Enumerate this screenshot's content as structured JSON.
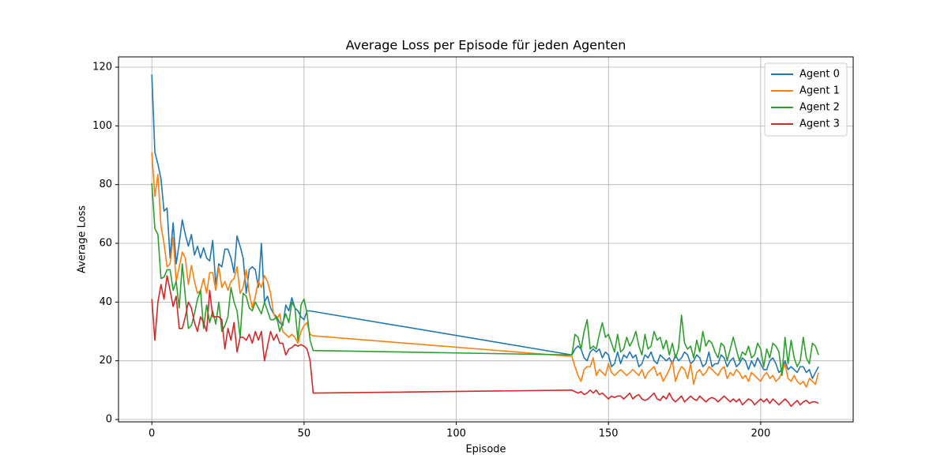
{
  "chart_data": {
    "type": "line",
    "title": "Average Loss per Episode für jeden Agenten",
    "xlabel": "Episode",
    "ylabel": "Average Loss",
    "x": [
      0,
      1,
      2,
      3,
      4,
      5,
      6,
      7,
      8,
      9,
      10,
      11,
      12,
      13,
      14,
      15,
      16,
      17,
      18,
      19,
      20,
      21,
      22,
      23,
      24,
      25,
      26,
      27,
      28,
      29,
      30,
      31,
      32,
      33,
      34,
      35,
      36,
      37,
      38,
      39,
      40,
      41,
      42,
      43,
      44,
      45,
      46,
      47,
      48,
      49,
      50,
      51,
      52,
      53,
      138,
      139,
      140,
      141,
      142,
      143,
      144,
      145,
      146,
      147,
      148,
      149,
      150,
      151,
      152,
      153,
      154,
      155,
      156,
      157,
      158,
      159,
      160,
      161,
      162,
      163,
      164,
      165,
      166,
      167,
      168,
      169,
      170,
      171,
      172,
      173,
      174,
      175,
      176,
      177,
      178,
      179,
      180,
      181,
      182,
      183,
      184,
      185,
      186,
      187,
      188,
      189,
      190,
      191,
      192,
      193,
      194,
      195,
      196,
      197,
      198,
      199,
      200,
      201,
      202,
      203,
      204,
      205,
      206,
      207,
      208,
      209,
      210,
      211,
      212,
      213,
      214,
      215,
      216,
      217,
      218,
      219
    ],
    "series": [
      {
        "name": "Agent 0",
        "color": "#1f77b4",
        "values": [
          117.5,
          91,
          87,
          82,
          71,
          72,
          55,
          67,
          53,
          60,
          68,
          63,
          59,
          63,
          56,
          59,
          55,
          58.5,
          55,
          54,
          61,
          46,
          53,
          52,
          58,
          58,
          55,
          50,
          62.5,
          59,
          55,
          43,
          51,
          52,
          51,
          45,
          60,
          40,
          42,
          38,
          36,
          35,
          33,
          32,
          39,
          37,
          41.5,
          38,
          37,
          35,
          34,
          37,
          37,
          36.8,
          22,
          24,
          25,
          24,
          21,
          20,
          23,
          24,
          23,
          24,
          21,
          23,
          22,
          18,
          19,
          23,
          19,
          22,
          21,
          23,
          21,
          22,
          18,
          19,
          22,
          21,
          23,
          20,
          19,
          22,
          21,
          20,
          21,
          19,
          22,
          20,
          21,
          23,
          22,
          19,
          20,
          22,
          21,
          18,
          19,
          23,
          18,
          19,
          19,
          22,
          21,
          18,
          20,
          21,
          18,
          19,
          21,
          20,
          17,
          20,
          18,
          21,
          19,
          17,
          17,
          20,
          21,
          19,
          16,
          17,
          20,
          17,
          18,
          17,
          16,
          18,
          18,
          16,
          17,
          14,
          16,
          18
        ]
      },
      {
        "name": "Agent 1",
        "color": "#ff7f0e",
        "values": [
          91,
          76,
          83.5,
          66,
          60,
          52,
          53,
          62,
          47,
          52,
          57,
          55,
          46,
          52.5,
          47,
          43,
          44,
          48,
          43,
          50,
          50,
          44,
          52,
          45,
          47,
          44,
          47,
          48,
          52,
          43,
          45,
          51,
          43,
          38,
          42,
          47,
          45,
          49,
          47,
          43,
          36,
          34,
          36,
          30,
          29,
          28,
          29,
          28,
          26,
          30,
          32,
          33,
          29,
          28.5,
          21.5,
          18,
          15,
          13,
          17,
          18,
          18,
          21,
          15,
          17,
          16,
          15,
          19,
          16,
          15,
          16,
          17,
          16,
          15,
          16,
          17,
          16,
          15,
          17,
          14,
          16,
          17,
          18,
          15,
          16,
          13,
          15,
          17,
          20,
          13,
          16,
          18,
          17,
          14,
          19,
          12,
          16,
          17,
          15,
          16,
          18,
          17,
          16,
          15,
          17,
          18,
          14,
          16,
          15,
          17,
          16,
          14,
          15,
          13,
          16,
          15,
          14,
          13,
          15,
          16,
          14,
          15,
          13,
          14,
          16,
          19,
          14,
          13,
          15,
          13,
          12,
          13,
          11,
          14,
          13,
          12,
          16
        ]
      },
      {
        "name": "Agent 2",
        "color": "#2ca02c",
        "values": [
          80.5,
          65,
          63,
          48,
          48.5,
          51,
          51,
          44,
          47,
          38,
          53,
          42,
          31,
          32,
          36,
          41,
          44,
          31,
          39,
          33,
          37,
          32.5,
          40,
          30,
          32,
          35,
          45,
          40,
          37,
          28,
          43,
          42,
          38,
          37,
          40,
          38,
          36,
          40,
          37,
          34,
          34,
          35,
          30,
          33,
          36,
          33,
          40,
          38,
          27,
          39,
          41,
          36,
          27,
          23.5,
          22,
          29,
          28,
          24,
          30,
          34,
          24,
          25,
          24,
          29,
          33,
          28,
          29,
          26,
          23,
          29,
          23,
          24,
          28,
          25,
          27,
          30,
          25,
          22,
          29,
          24,
          25,
          30,
          27,
          28,
          24,
          27,
          22,
          26,
          21,
          24,
          35.5,
          26,
          24,
          25,
          21,
          27,
          23,
          30,
          25,
          27,
          26,
          23,
          21,
          26,
          25,
          20,
          24,
          28,
          24,
          20,
          23,
          22,
          25,
          21,
          22,
          26,
          24,
          18,
          24,
          21,
          26,
          25,
          23,
          15,
          28,
          19,
          27,
          21,
          18,
          20,
          28,
          21,
          19,
          26,
          25,
          22
        ]
      },
      {
        "name": "Agent 3",
        "color": "#d62728",
        "values": [
          41,
          27,
          40,
          46,
          41,
          49,
          44,
          38.5,
          42,
          31,
          31,
          35,
          40,
          38,
          33,
          30,
          35,
          33,
          30,
          44,
          35,
          35,
          35,
          34,
          24,
          31,
          27,
          33,
          23,
          28,
          28,
          27,
          29,
          26,
          30,
          27,
          30,
          20,
          25,
          30,
          27,
          29,
          26,
          26,
          22,
          24,
          24.5,
          25.5,
          25,
          25.5,
          25,
          24,
          20,
          9,
          10,
          9.5,
          9,
          9.5,
          8.5,
          9,
          10,
          9,
          10,
          8.5,
          9,
          8,
          7,
          8,
          7.5,
          8,
          8,
          7,
          8,
          9,
          7,
          8,
          8.5,
          7,
          6.5,
          7,
          8,
          9,
          7,
          6.5,
          8,
          7,
          9,
          7,
          6,
          7,
          8,
          6,
          7,
          8,
          7,
          6.5,
          8,
          7,
          6,
          7,
          7.5,
          7,
          6,
          7,
          8,
          7,
          6,
          7,
          6,
          7,
          5,
          6,
          7,
          6.5,
          5,
          6,
          7,
          6,
          7,
          5.5,
          7,
          6,
          5,
          6,
          7,
          6,
          4.5,
          5.5,
          6.5,
          5,
          6,
          6.5,
          5.5,
          6,
          6,
          5.5
        ]
      }
    ],
    "xlim": [
      -10.95,
      230.4
    ],
    "ylim": [
      -0.8,
      123.5
    ],
    "xticks": [
      0,
      50,
      100,
      150,
      200
    ],
    "yticks": [
      0,
      20,
      40,
      60,
      80,
      100,
      120
    ],
    "grid": true,
    "legend": "upper right"
  }
}
